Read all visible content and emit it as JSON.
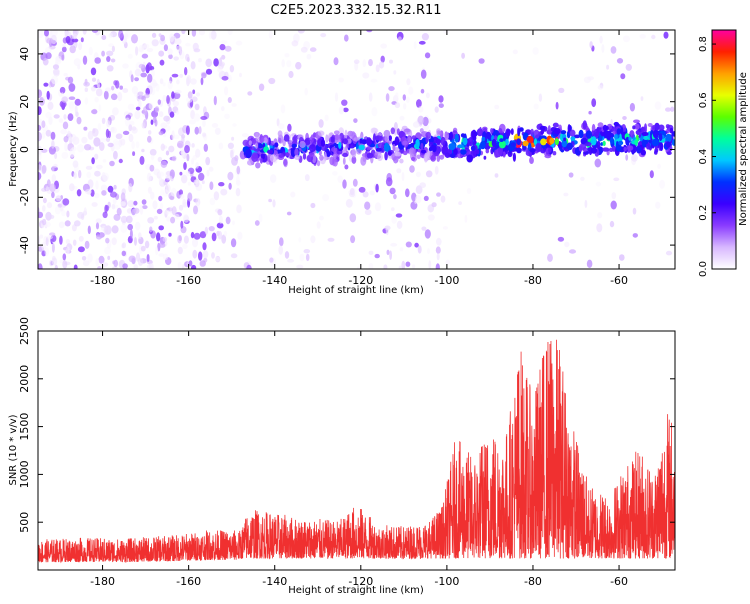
{
  "title": "C2E5.2023.332.15.32.R11",
  "chart_data": [
    {
      "type": "heatmap",
      "title": "C2E5.2023.332.15.32.R11",
      "xlabel": "Height of straight line (km)",
      "ylabel": "Frequency (Hz)",
      "xlim": [
        -195,
        -47
      ],
      "ylim": [
        -50,
        50
      ],
      "xticks": [
        -180,
        -160,
        -140,
        -120,
        -100,
        -80,
        -60
      ],
      "yticks": [
        -40,
        -20,
        0,
        20,
        40
      ],
      "colorbar": {
        "label": "Normalized spectral amplitude",
        "range": [
          0.0,
          0.85
        ],
        "ticks": [
          0.0,
          0.2,
          0.4,
          0.6,
          0.8
        ],
        "colormap": [
          "#ffffff",
          "#d8b8ff",
          "#8a3cff",
          "#3a00ff",
          "#0030ff",
          "#00c8ff",
          "#00ff9c",
          "#5cff00",
          "#e8ff00",
          "#ffa000",
          "#ff2000",
          "#ff00a0"
        ]
      },
      "description_band": {
        "center_freq_start": 0,
        "center_freq_end": 5,
        "x_start": -147,
        "x_end": -47
      }
    },
    {
      "type": "line",
      "title": "",
      "xlabel": "Height of straight line (km)",
      "ylabel": "SNR (10 * v/v)",
      "xlim": [
        -195,
        -47
      ],
      "ylim": [
        0,
        2500
      ],
      "xticks": [
        -180,
        -160,
        -140,
        -120,
        -100,
        -80,
        -60
      ],
      "yticks": [
        500,
        1000,
        1500,
        2000,
        2500
      ],
      "color": "#f03030",
      "envelope": [
        {
          "x": -195,
          "y": 320
        },
        {
          "x": -185,
          "y": 340
        },
        {
          "x": -175,
          "y": 330
        },
        {
          "x": -165,
          "y": 360
        },
        {
          "x": -155,
          "y": 420
        },
        {
          "x": -148,
          "y": 420
        },
        {
          "x": -146,
          "y": 650
        },
        {
          "x": -140,
          "y": 600
        },
        {
          "x": -135,
          "y": 550
        },
        {
          "x": -125,
          "y": 520
        },
        {
          "x": -121,
          "y": 700
        },
        {
          "x": -116,
          "y": 480
        },
        {
          "x": -110,
          "y": 460
        },
        {
          "x": -104,
          "y": 520
        },
        {
          "x": -101,
          "y": 700
        },
        {
          "x": -98,
          "y": 1400
        },
        {
          "x": -94,
          "y": 1200
        },
        {
          "x": -90,
          "y": 1500
        },
        {
          "x": -86,
          "y": 1500
        },
        {
          "x": -83,
          "y": 2400
        },
        {
          "x": -80,
          "y": 1800
        },
        {
          "x": -77,
          "y": 2500
        },
        {
          "x": -74,
          "y": 2450
        },
        {
          "x": -71,
          "y": 1600
        },
        {
          "x": -67,
          "y": 900
        },
        {
          "x": -62,
          "y": 800
        },
        {
          "x": -59,
          "y": 1100
        },
        {
          "x": -55,
          "y": 1300
        },
        {
          "x": -52,
          "y": 1050
        },
        {
          "x": -49,
          "y": 1700
        },
        {
          "x": -47,
          "y": 1600
        }
      ]
    }
  ]
}
